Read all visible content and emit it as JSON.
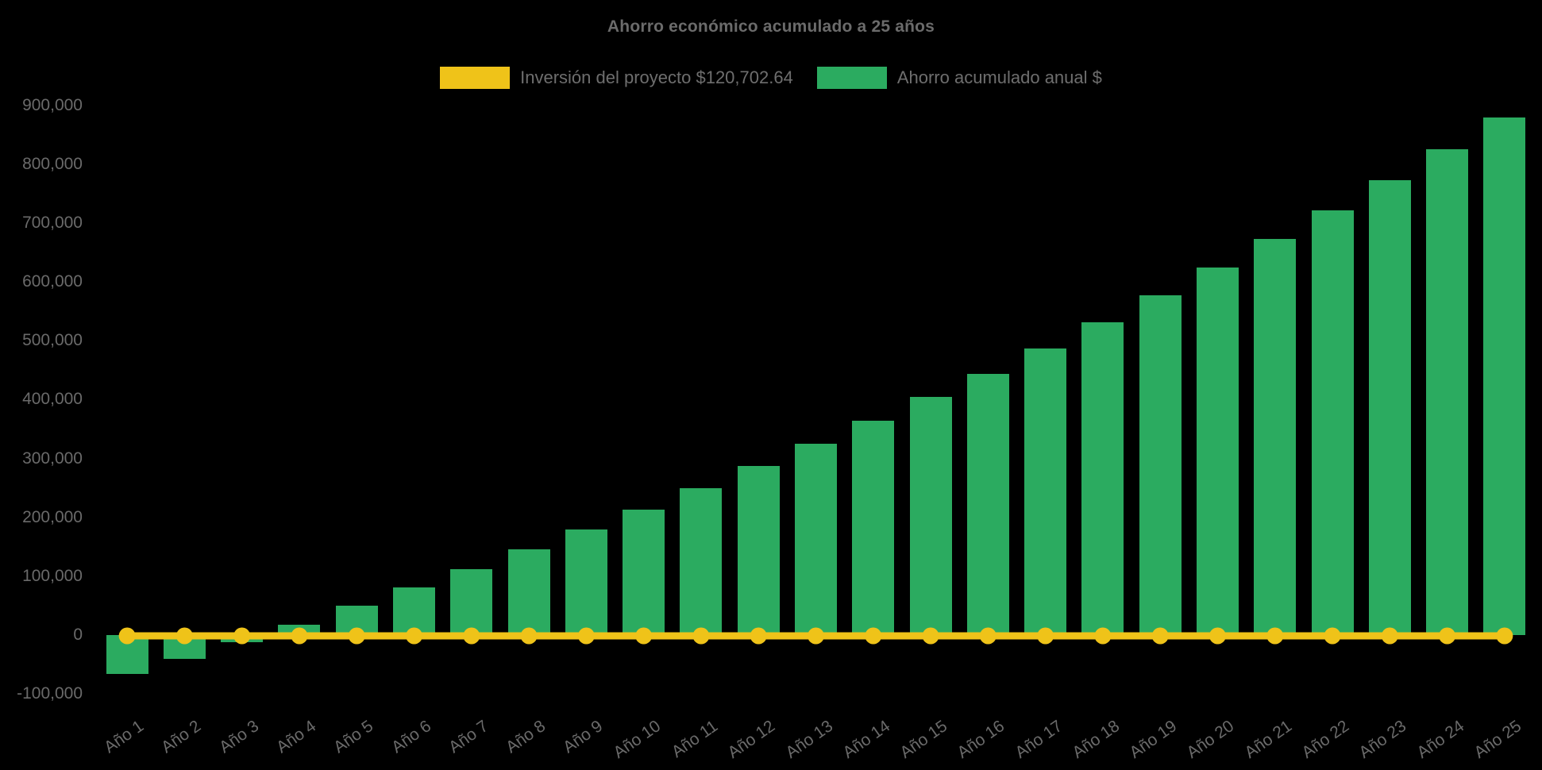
{
  "title": "Ahorro económico acumulado a 25 años",
  "colors": {
    "background": "#000000",
    "text_gray": "#6a6a6a",
    "investment_yellow": "#efc319",
    "savings_green": "#2bab60"
  },
  "legend": {
    "investment_label": "Inversión del proyecto $120,702.64",
    "savings_label": "Ahorro acumulado anual $"
  },
  "chart_data": {
    "type": "bar",
    "title": "Ahorro económico acumulado a 25 años",
    "xlabel": "",
    "ylabel": "",
    "ylim": [
      -100000,
      900000
    ],
    "yticks": [
      -100000,
      0,
      100000,
      200000,
      300000,
      400000,
      500000,
      600000,
      700000,
      800000,
      900000
    ],
    "grid": false,
    "legend_position": "top",
    "categories": [
      "Año 1",
      "Año 2",
      "Año 3",
      "Año 4",
      "Año 5",
      "Año 6",
      "Año 7",
      "Año 8",
      "Año 9",
      "Año 10",
      "Año 11",
      "Año 12",
      "Año 13",
      "Año 14",
      "Año 15",
      "Año 16",
      "Año 17",
      "Año 18",
      "Año 19",
      "Año 20",
      "Año 21",
      "Año 22",
      "Año 23",
      "Año 24",
      "Año 25"
    ],
    "series": [
      {
        "name": "Inversión del proyecto $120,702.64",
        "type": "line",
        "color": "#efc319",
        "marker": "circle",
        "values": [
          0,
          0,
          0,
          0,
          0,
          0,
          0,
          0,
          0,
          0,
          0,
          0,
          0,
          0,
          0,
          0,
          0,
          0,
          0,
          0,
          0,
          0,
          0,
          0,
          0
        ]
      },
      {
        "name": "Ahorro acumulado anual $",
        "type": "bar",
        "color": "#2bab60",
        "values": [
          -66000,
          -40500,
          -12000,
          18000,
          50000,
          81000,
          112500,
          145500,
          180000,
          213500,
          249500,
          287000,
          325000,
          364000,
          404500,
          444000,
          487000,
          532000,
          577500,
          624000,
          673500,
          722000,
          773500,
          826000,
          880000
        ]
      }
    ]
  }
}
